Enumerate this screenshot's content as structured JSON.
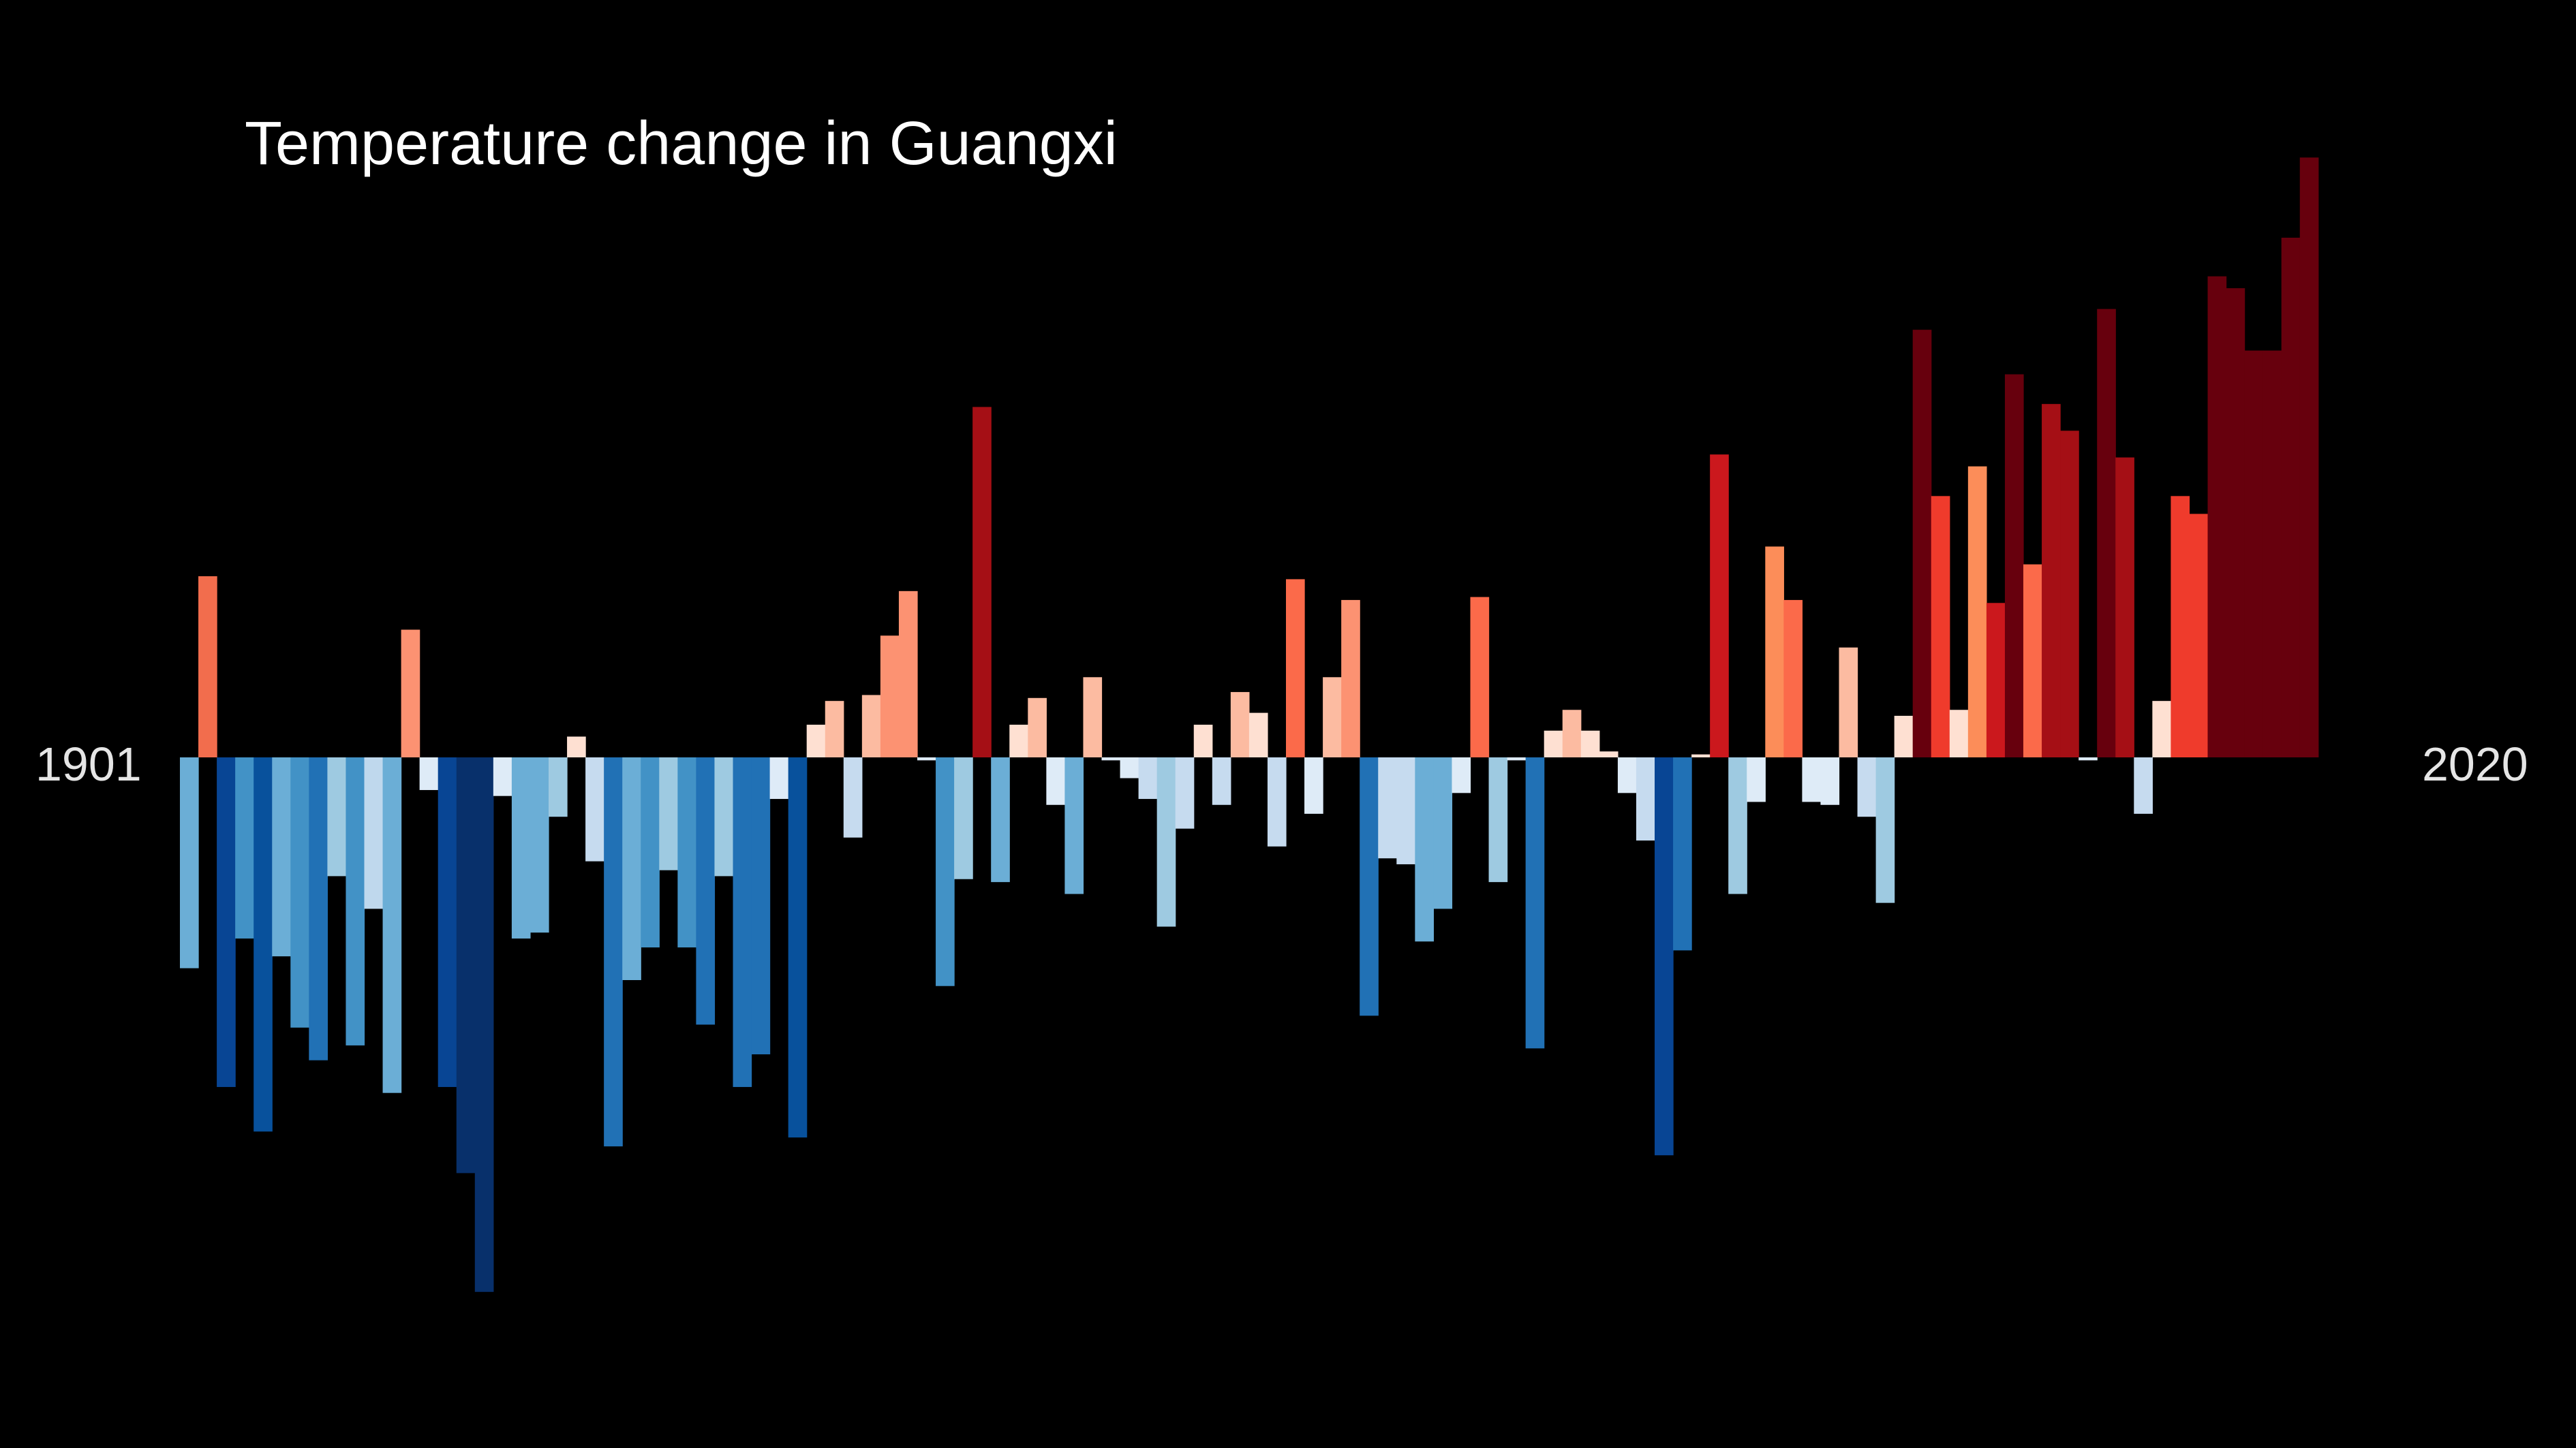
{
  "chart_data": {
    "type": "bar",
    "title": "Temperature change in Guangxi",
    "x_start_label": "1901",
    "x_end_label": "2020",
    "x": [
      1901,
      1902,
      1903,
      1904,
      1905,
      1906,
      1907,
      1908,
      1909,
      1910,
      1911,
      1912,
      1913,
      1914,
      1915,
      1916,
      1917,
      1918,
      1919,
      1920,
      1921,
      1922,
      1923,
      1924,
      1925,
      1926,
      1927,
      1928,
      1929,
      1930,
      1931,
      1932,
      1933,
      1934,
      1935,
      1936,
      1937,
      1938,
      1939,
      1940,
      1941,
      1942,
      1943,
      1944,
      1945,
      1946,
      1947,
      1948,
      1949,
      1950,
      1951,
      1952,
      1953,
      1954,
      1955,
      1956,
      1957,
      1958,
      1959,
      1960,
      1961,
      1962,
      1963,
      1964,
      1965,
      1966,
      1967,
      1968,
      1969,
      1970,
      1971,
      1972,
      1973,
      1974,
      1975,
      1976,
      1977,
      1978,
      1979,
      1980,
      1981,
      1982,
      1983,
      1984,
      1985,
      1986,
      1987,
      1988,
      1989,
      1990,
      1991,
      1992,
      1993,
      1994,
      1995,
      1996,
      1997,
      1998,
      1999,
      2000,
      2001,
      2002,
      2003,
      2004,
      2005,
      2006,
      2007,
      2008,
      2009,
      2010,
      2011,
      2012,
      2013,
      2014,
      2015,
      2016,
      2017,
      2018,
      2019,
      2020
    ],
    "values": [
      -0.355,
      0.305,
      -0.555,
      -0.305,
      -0.63,
      -0.335,
      -0.455,
      -0.51,
      -0.2,
      -0.485,
      -0.255,
      -0.565,
      0.215,
      -0.055,
      -0.555,
      -0.7,
      -0.9,
      -0.065,
      -0.305,
      -0.295,
      -0.1,
      0.035,
      -0.175,
      -0.655,
      -0.375,
      -0.32,
      -0.19,
      -0.32,
      -0.45,
      -0.2,
      -0.555,
      -0.5,
      -0.07,
      -0.64,
      0.055,
      0.095,
      -0.135,
      0.105,
      0.205,
      0.28,
      -0.005,
      -0.385,
      -0.205,
      0.59,
      -0.21,
      0.055,
      0.1,
      -0.08,
      -0.23,
      0.135,
      -0.005,
      -0.035,
      -0.07,
      -0.285,
      -0.12,
      0.055,
      -0.08,
      0.11,
      0.075,
      -0.15,
      0.3,
      -0.095,
      0.135,
      0.265,
      -0.435,
      -0.17,
      -0.18,
      -0.31,
      -0.255,
      -0.06,
      0.27,
      -0.21,
      -0.005,
      -0.49,
      0.045,
      0.08,
      0.045,
      0.01,
      -0.06,
      -0.14,
      -0.67,
      -0.325,
      0.005,
      0.51,
      -0.23,
      -0.075,
      0.355,
      0.265,
      -0.075,
      -0.08,
      0.185,
      -0.1,
      -0.245,
      0.07,
      0.72,
      0.44,
      0.08,
      0.49,
      0.26,
      0.645,
      0.325,
      0.595,
      0.55,
      -0.005,
      0.755,
      0.505,
      -0.095,
      0.095,
      0.44,
      0.41,
      0.81,
      0.79,
      0.685,
      0.685,
      0.875,
      1.01,
      0.0,
      0.0,
      0.0,
      0.0
    ],
    "ylim": [
      -1.2,
      1.2
    ],
    "bar_colors": [
      "#6baed6",
      "#f26d4d",
      "#084594",
      "#4292c6",
      "#08519c",
      "#6baed6",
      "#4292c6",
      "#2171b5",
      "#9ecae1",
      "#4292c6",
      "#bfd8ed",
      "#6baed6",
      "#fc9272",
      "#deebf7",
      "#084594",
      "#08306b",
      "#08306b",
      "#deebf7",
      "#6baed6",
      "#6baed6",
      "#9ecae1",
      "#fee0d2",
      "#c6dbef",
      "#2171b5",
      "#6baed6",
      "#4292c6",
      "#9ecae1",
      "#4292c6",
      "#2171b5",
      "#9ecae1",
      "#2171b5",
      "#2171b5",
      "#deebf7",
      "#08519c",
      "#fee0d2",
      "#fcbba1",
      "#c6dbef",
      "#fcbba1",
      "#fc9272",
      "#fc9272",
      "#deebf7",
      "#4292c6",
      "#9ecae1",
      "#a50f15",
      "#6baed6",
      "#fee0d2",
      "#fcbba1",
      "#deebf7",
      "#6baed6",
      "#fcbba1",
      "#deebf7",
      "#deebf7",
      "#c6dbef",
      "#9ecae1",
      "#c6dbef",
      "#fee0d2",
      "#c6dbef",
      "#fcbba1",
      "#fee0d2",
      "#c6dbef",
      "#fb6a4a",
      "#deebf7",
      "#fcbba1",
      "#fc9272",
      "#2171b5",
      "#c6dbef",
      "#c6dbef",
      "#6baed6",
      "#6baed6",
      "#deebf7",
      "#fb6a4a",
      "#9ecae1",
      "#deebf7",
      "#2171b5",
      "#fee0d2",
      "#fcbba1",
      "#fee0d2",
      "#fee0d2",
      "#deebf7",
      "#c6dbef",
      "#084594",
      "#2171b5",
      "#fee0d2",
      "#cb181d",
      "#9ecae1",
      "#deebf7",
      "#fc8d59",
      "#fb6a4a",
      "#deebf7",
      "#deebf7",
      "#fcbba1",
      "#c6dbef",
      "#9ecae1",
      "#fee0d2",
      "#67000d",
      "#ef3b2c",
      "#fee0d2",
      "#fc8d59",
      "#cb181d",
      "#67000d",
      "#fb6a4a",
      "#a50f15",
      "#a50f15",
      "#deebf7",
      "#67000d",
      "#a50f15",
      "#c6dbef",
      "#fee0d2",
      "#ef3b2c",
      "#ef3b2c",
      "#67000d",
      "#67000d",
      "#67000d",
      "#67000d",
      "#67000d",
      "#67000d",
      "#000000",
      "#000000",
      "#000000",
      "#000000"
    ],
    "grid": false,
    "legend": "none"
  }
}
